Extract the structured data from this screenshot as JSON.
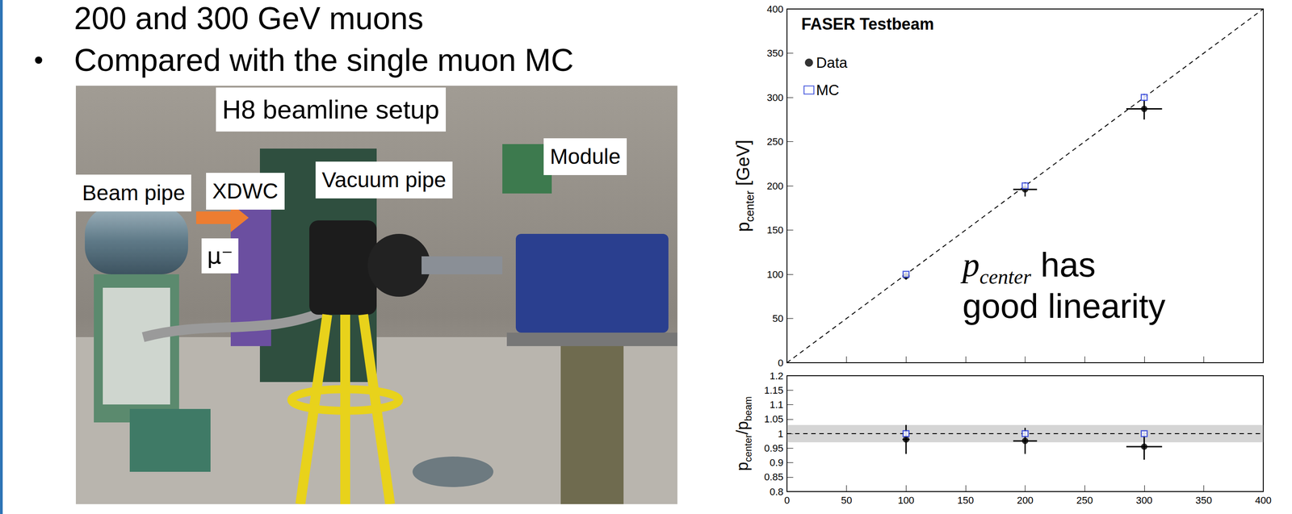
{
  "slide": {
    "bullet_continuation": "200 and 300 GeV muons",
    "bullet": "Compared with the single muon MC"
  },
  "photo": {
    "title": "H8 beamline setup",
    "labels": [
      "Beam pipe",
      "XDWC",
      "Vacuum pipe",
      "Module"
    ],
    "particle": "μ⁻"
  },
  "chart_data": [
    {
      "type": "scatter",
      "title": "FASER Testbeam",
      "ylabel": [
        {
          "text": "p"
        },
        {
          "text": "center",
          "sub": true
        },
        {
          "text": " [GeV]"
        }
      ],
      "annotation": [
        {
          "text": "p"
        },
        {
          "text": "center",
          "sub": true
        },
        {
          "text": " has good linearity"
        }
      ],
      "xlim": [
        0,
        400
      ],
      "xticks": [
        0,
        50,
        100,
        150,
        200,
        250,
        300,
        350,
        400
      ],
      "ylim": [
        0,
        400
      ],
      "yticks": [
        0,
        50,
        100,
        150,
        200,
        250,
        300,
        350,
        400
      ],
      "tick_labels": "y",
      "legend": "upper left",
      "series": [
        {
          "type": "line",
          "line_style": "dashed",
          "color": "#000000",
          "x": [
            0,
            400
          ],
          "values": [
            0,
            400
          ]
        },
        {
          "name": "Data",
          "color": "#000000",
          "marker": "circle",
          "x": [
            100,
            200,
            300
          ],
          "values": [
            98,
            196,
            287
          ],
          "x_errors": [
            3,
            10,
            15
          ],
          "y_errors": [
            4,
            8,
            12
          ]
        },
        {
          "name": "MC",
          "color": "#1f35d6",
          "marker": "square_open",
          "x": [
            100,
            200,
            300
          ],
          "values": [
            100,
            200,
            300
          ],
          "x_errors": [
            0,
            0,
            0
          ],
          "y_errors": [
            2,
            3,
            4
          ]
        }
      ]
    },
    {
      "type": "scatter",
      "ylabel": [
        {
          "text": "p"
        },
        {
          "text": "center",
          "sub": true
        },
        {
          "text": "/p"
        },
        {
          "text": "beam",
          "sub": true
        }
      ],
      "xlim": [
        0,
        400
      ],
      "xticks": [
        0,
        50,
        100,
        150,
        200,
        250,
        300,
        350,
        400
      ],
      "ylim": [
        0.8,
        1.2
      ],
      "yticks": [
        0.8,
        0.85,
        0.9,
        0.95,
        1,
        1.05,
        1.1,
        1.15,
        1.2
      ],
      "band": [
        0.97,
        1.03
      ],
      "series": [
        {
          "type": "line",
          "line_style": "dashed",
          "color": "#000000",
          "x": [
            0,
            400
          ],
          "values": [
            1,
            1
          ]
        },
        {
          "name": "Data",
          "color": "#000000",
          "marker": "circle",
          "x": [
            100,
            200,
            300
          ],
          "values": [
            0.98,
            0.975,
            0.955
          ],
          "x_errors": [
            3,
            10,
            15
          ],
          "y_errors": [
            0.05,
            0.045,
            0.045
          ]
        },
        {
          "name": "MC",
          "color": "#1f35d6",
          "marker": "square_open",
          "x": [
            100,
            200,
            300
          ],
          "values": [
            1,
            1,
            1
          ],
          "x_errors": [
            0,
            0,
            0
          ],
          "y_errors": [
            0.005,
            0.008,
            0.008
          ]
        }
      ]
    }
  ]
}
